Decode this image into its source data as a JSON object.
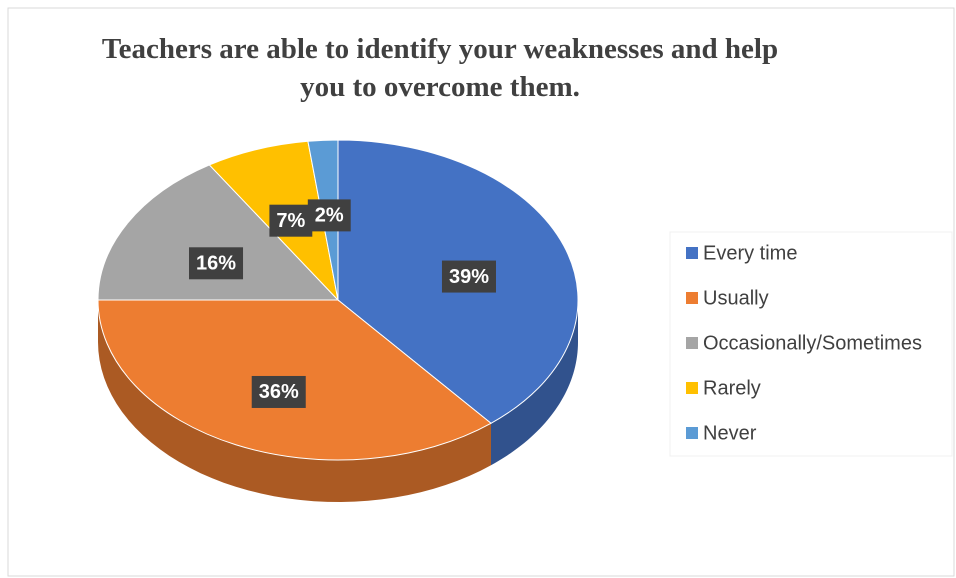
{
  "chart_data": {
    "type": "pie",
    "title": "Teachers are able to identify your weaknesses and help you to overcome them.",
    "categories": [
      "Every time",
      "Usually",
      "Occasionally/Sometimes",
      "Rarely",
      "Never"
    ],
    "values": [
      39,
      36,
      16,
      7,
      2
    ],
    "value_labels": [
      "39%",
      "36%",
      "16%",
      "7%",
      "2%"
    ],
    "colors": [
      "#4472c4",
      "#ed7d31",
      "#a5a5a5",
      "#ffc000",
      "#5b9bd5"
    ],
    "legend": "right"
  }
}
